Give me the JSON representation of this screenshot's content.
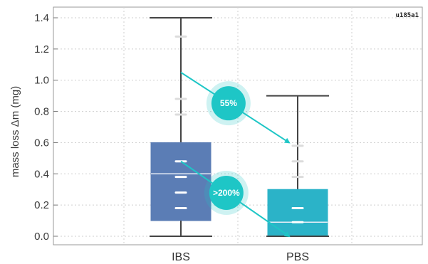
{
  "chart_data": {
    "type": "box",
    "ylabel": "mass loss Δm (mg)",
    "ylim": [
      0,
      1.4
    ],
    "yticks": [
      "0.0",
      "0.2",
      "0.4",
      "0.6",
      "0.8",
      "1.0",
      "1.2",
      "1.4"
    ],
    "grid": true,
    "corner_label": "u185a1",
    "categories": [
      "IBS",
      "PBS"
    ],
    "boxes": [
      {
        "category": "IBS",
        "min": 0.0,
        "q1": 0.1,
        "median": 0.4,
        "q3": 0.6,
        "max": 1.4,
        "points": [
          0.18,
          0.28,
          0.38,
          0.48,
          0.78,
          0.88,
          1.28
        ],
        "color": "#5b7db5"
      },
      {
        "category": "PBS",
        "min": 0.0,
        "q1": 0.0,
        "median": 0.09,
        "q3": 0.3,
        "max": 0.9,
        "points": [
          0.09,
          0.18,
          0.38,
          0.48,
          0.58
        ],
        "color": "#2bb3c8"
      }
    ],
    "annotations": [
      {
        "label": "55%",
        "from": [
          0,
          1.05
        ],
        "to": [
          1,
          0.6
        ],
        "at": 0.44
      },
      {
        "label": ">200%",
        "from": [
          0,
          0.48
        ],
        "to": [
          1,
          0.0
        ],
        "at": 0.42
      }
    ],
    "annotation_color": "#1ec6c6"
  }
}
